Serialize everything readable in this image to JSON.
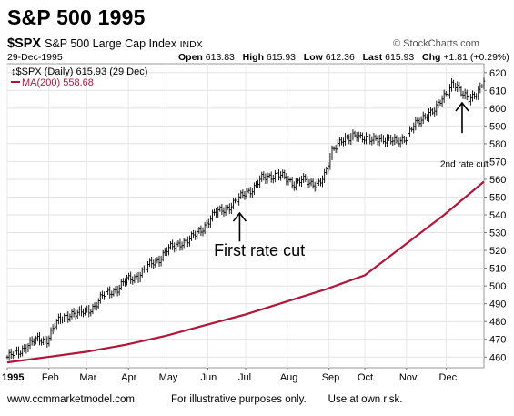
{
  "page": {
    "title": "S&P 500 1995",
    "symbol": "$SPX",
    "index_name": "S&P 500 Large Cap Index",
    "exchange": "INDX",
    "source": "© StockCharts.com",
    "date": "29-Dec-1995",
    "open_label": "Open",
    "open_value": "613.83",
    "high_label": "High",
    "high_value": "615.93",
    "low_label": "Low",
    "low_value": "612.36",
    "last_label": "Last",
    "last_value": "615.93",
    "chg_label": "Chg",
    "chg_value": "+1.81 (+0.29%)",
    "footer_site": "www.ccmmarketmodel.com",
    "footer_note1": "For illustrative purposes only.",
    "footer_note2": "Use at own risk."
  },
  "chart_data": {
    "type": "line",
    "legend": [
      {
        "text": "$SPX (Daily) 615.93 (29 Dec)",
        "color": "#000000"
      },
      {
        "text": "MA(200) 558.68",
        "color": "#b0163a"
      }
    ],
    "legend_position": "top-left",
    "grid": true,
    "y_axis_side": "right",
    "xlim": [
      0,
      12
    ],
    "ylim": [
      454,
      625
    ],
    "y_ticks": [
      460,
      470,
      480,
      490,
      500,
      510,
      520,
      530,
      540,
      550,
      560,
      570,
      580,
      590,
      600,
      610,
      620
    ],
    "x_tick_labels": [
      {
        "label": "1995",
        "x": 0,
        "bold": true
      },
      {
        "label": "Feb",
        "x": 1.05
      },
      {
        "label": "Mar",
        "x": 2.0
      },
      {
        "label": "Apr",
        "x": 3.05
      },
      {
        "label": "May",
        "x": 4.0
      },
      {
        "label": "Jun",
        "x": 5.05
      },
      {
        "label": "Jul",
        "x": 6.0
      },
      {
        "label": "Aug",
        "x": 7.05
      },
      {
        "label": "Sep",
        "x": 8.1
      },
      {
        "label": "Oct",
        "x": 9.0
      },
      {
        "label": "Nov",
        "x": 10.05
      },
      {
        "label": "Dec",
        "x": 11.05
      }
    ],
    "series": [
      {
        "name": "$SPX",
        "style": "ohlc",
        "color": "#000000",
        "x": [
          0.0,
          0.25,
          0.5,
          0.7,
          1.0,
          1.2,
          1.4,
          1.6,
          1.8,
          2.0,
          2.2,
          2.4,
          2.6,
          2.8,
          3.0,
          3.2,
          3.4,
          3.6,
          3.8,
          4.0,
          4.2,
          4.4,
          4.6,
          4.8,
          5.0,
          5.2,
          5.4,
          5.6,
          5.8,
          6.0,
          6.2,
          6.4,
          6.6,
          6.8,
          7.0,
          7.2,
          7.4,
          7.6,
          7.8,
          8.0,
          8.2,
          8.4,
          8.6,
          8.8,
          9.0,
          9.2,
          9.4,
          9.6,
          9.8,
          10.0,
          10.2,
          10.4,
          10.6,
          10.8,
          11.0,
          11.1,
          11.2,
          11.3,
          11.45,
          11.6,
          11.75,
          11.9,
          12.0
        ],
        "values": [
          460,
          462,
          467,
          469,
          470,
          478,
          482,
          485,
          484,
          486,
          489,
          494,
          497,
          499,
          503,
          505,
          508,
          512,
          515,
          520,
          522,
          525,
          526,
          530,
          535,
          540,
          543,
          545,
          548,
          553,
          555,
          560,
          562,
          563,
          560,
          558,
          560,
          557,
          558,
          562,
          577,
          583,
          582,
          585,
          584,
          581,
          583,
          583,
          580,
          583,
          590,
          592,
          598,
          600,
          606,
          610,
          615,
          613,
          607,
          605,
          608,
          611,
          615
        ]
      },
      {
        "name": "MA(200)",
        "style": "line",
        "color": "#b0163a",
        "x": [
          0,
          1,
          2,
          3,
          4,
          5,
          6,
          7,
          8,
          9,
          10,
          11,
          12
        ],
        "values": [
          457,
          460,
          463,
          467,
          472,
          478,
          484,
          491,
          498,
          506,
          523,
          540,
          558.68
        ]
      }
    ],
    "annotations": [
      {
        "text": "First rate cut",
        "x": 5.2,
        "y": 517,
        "font_size": 18
      },
      {
        "text": "2nd rate cut",
        "x": 10.9,
        "y": 567,
        "font_size": 10
      },
      {
        "type": "arrow",
        "x": 5.85,
        "y_from": 525,
        "y_to": 541
      },
      {
        "type": "arrow",
        "x": 11.45,
        "y_from": 586,
        "y_to": 603
      }
    ]
  }
}
